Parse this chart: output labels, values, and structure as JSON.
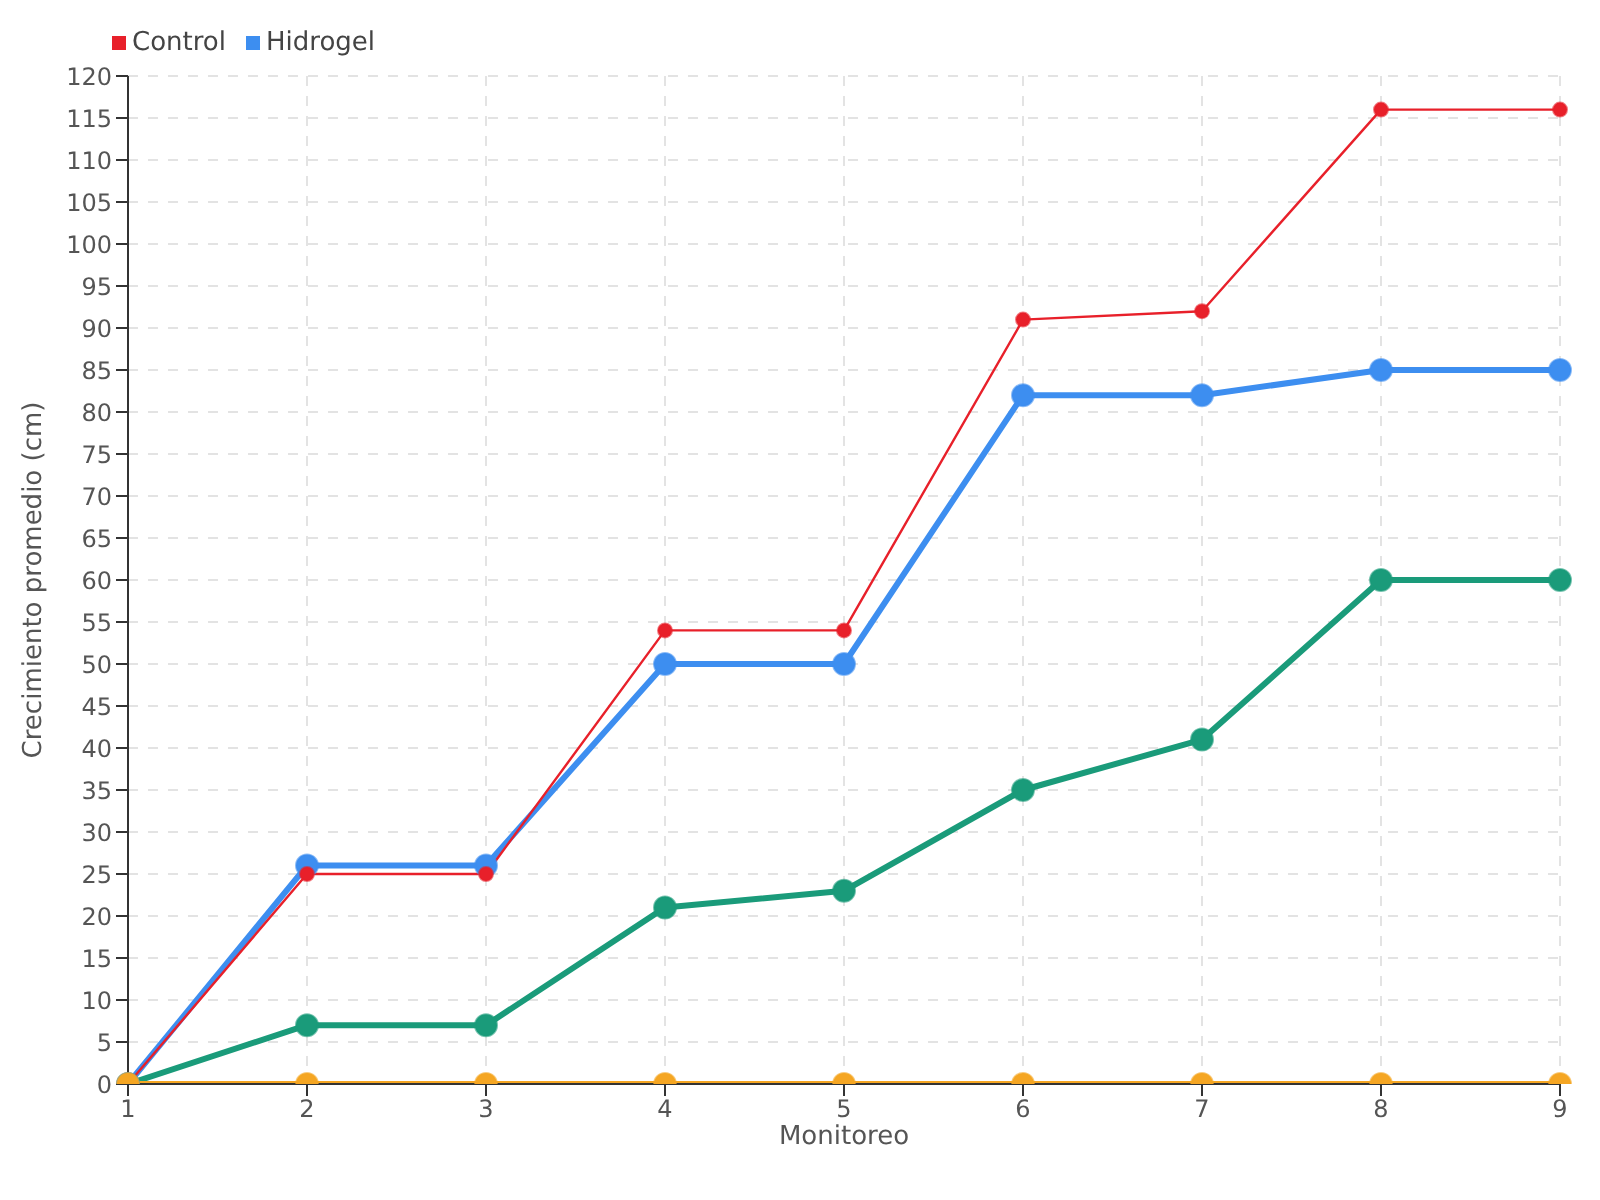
{
  "chart_data": {
    "type": "line",
    "xlabel": "Monitoreo",
    "ylabel": "Crecimiento promedio (cm)",
    "categories": [
      "1",
      "2",
      "3",
      "4",
      "5",
      "6",
      "7",
      "8",
      "9"
    ],
    "series": [
      {
        "color": "#f5a623",
        "values": [
          0,
          0,
          0,
          0,
          0,
          0,
          0,
          0,
          0
        ]
      },
      {
        "name": "Control",
        "color": "#e8202a",
        "values": [
          0,
          25,
          25,
          54,
          54,
          91,
          92,
          116,
          116
        ]
      },
      {
        "name": "Hidrogel",
        "color": "#3d8ef0",
        "values": [
          0,
          26,
          26,
          50,
          50,
          82,
          82,
          85,
          85
        ]
      },
      {
        "color": "#1a9b7a",
        "values": [
          0,
          7,
          7,
          21,
          23,
          35,
          41,
          60,
          60
        ]
      }
    ],
    "ylim": [
      0,
      120
    ],
    "yticks": [
      0,
      5,
      10,
      15,
      20,
      25,
      30,
      35,
      40,
      45,
      50,
      55,
      60,
      65,
      70,
      75,
      80,
      85,
      90,
      95,
      100,
      105,
      110,
      115,
      120
    ],
    "grid": true,
    "legend": "top left",
    "marker": "circle",
    "line_style": "solid"
  }
}
